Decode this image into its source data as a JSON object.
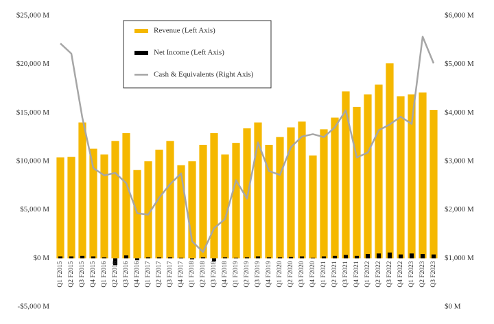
{
  "chart_data": {
    "type": "bar-line",
    "categories": [
      "Q1 F2015",
      "Q2 F2015",
      "Q3 F2015",
      "Q4 F2015",
      "Q1 F2016",
      "Q2 F2016",
      "Q3 F2016",
      "Q4 F2016",
      "Q1 F2017",
      "Q2 F2017",
      "Q3 F2017",
      "Q4 F2017",
      "Q1 F2018",
      "Q2 F2018",
      "Q3 F2018",
      "Q4 F2018",
      "Q1 F2019",
      "Q2 F2019",
      "Q3 F2019",
      "Q4 F2019",
      "Q1 F2020",
      "Q2 F2020",
      "Q3 F2020",
      "Q4 F2020",
      "Q1 F2021",
      "Q2 F2021",
      "Q3 F2021",
      "Q4 F2021",
      "Q1 F2022",
      "Q2 F2022",
      "Q3 F2022",
      "Q4 F2022",
      "Q1 F2023",
      "Q2 F2023",
      "Q3 F2023"
    ],
    "series": [
      {
        "name": "Revenue (Left Axis)",
        "type": "bar",
        "color": "#f5b800",
        "values": [
          10400,
          10450,
          14000,
          11300,
          10700,
          12100,
          12900,
          9100,
          10000,
          11200,
          12100,
          9600,
          10000,
          11700,
          12900,
          10700,
          11900,
          13400,
          14000,
          11700,
          12500,
          13500,
          14100,
          10600,
          13300,
          14500,
          17200,
          15600,
          16900,
          17900,
          20100,
          16700,
          16900,
          17100,
          15300
        ]
      },
      {
        "name": "Net Income (Left Axis)",
        "type": "bar",
        "color": "#000000",
        "values": [
          200,
          200,
          250,
          200,
          100,
          -700,
          300,
          -200,
          100,
          100,
          100,
          50,
          -100,
          100,
          -300,
          100,
          50,
          100,
          200,
          100,
          100,
          150,
          200,
          50,
          200,
          250,
          350,
          250,
          450,
          500,
          600,
          400,
          500,
          450,
          400
        ]
      },
      {
        "name": "Cash & Equivalents (Right Axis)",
        "type": "line",
        "axis": "y2",
        "color": "#a6a6a6",
        "values": [
          5430,
          5220,
          3900,
          2860,
          2710,
          2760,
          2550,
          1930,
          1900,
          2250,
          2530,
          2750,
          1350,
          1130,
          1620,
          1810,
          2610,
          2230,
          3390,
          2800,
          2720,
          3290,
          3510,
          3560,
          3500,
          3700,
          4050,
          3080,
          3180,
          3640,
          3760,
          3920,
          3770,
          5570,
          5020
        ]
      }
    ],
    "ylim": [
      -5000,
      25000
    ],
    "yticks": [
      {
        "value": -5000,
        "label": "-$5,000 M"
      },
      {
        "value": 0,
        "label": "$0 M"
      },
      {
        "value": 5000,
        "label": "$5,000 M"
      },
      {
        "value": 10000,
        "label": "$10,000 M"
      },
      {
        "value": 15000,
        "label": "$15,000 M"
      },
      {
        "value": 20000,
        "label": "$20,000 M"
      },
      {
        "value": 25000,
        "label": "$25,000 M"
      }
    ],
    "y2lim": [
      0,
      6000
    ],
    "y2ticks": [
      {
        "value": 0,
        "label": "$0 M"
      },
      {
        "value": 1000,
        "label": "$1,000 M"
      },
      {
        "value": 2000,
        "label": "$2,000 M"
      },
      {
        "value": 3000,
        "label": "$3,000 M"
      },
      {
        "value": 4000,
        "label": "$4,000 M"
      },
      {
        "value": 5000,
        "label": "$5,000 M"
      },
      {
        "value": 6000,
        "label": "$6,000 M"
      }
    ],
    "grid": false,
    "legend": "upper-left"
  }
}
